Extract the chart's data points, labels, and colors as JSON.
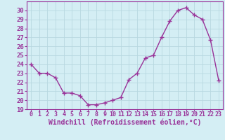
{
  "x": [
    0,
    1,
    2,
    3,
    4,
    5,
    6,
    7,
    8,
    9,
    10,
    11,
    12,
    13,
    14,
    15,
    16,
    17,
    18,
    19,
    20,
    21,
    22,
    23
  ],
  "y": [
    24,
    23,
    23,
    22.5,
    20.8,
    20.8,
    20.5,
    19.5,
    19.5,
    19.7,
    20,
    20.3,
    22.3,
    23,
    24.7,
    25,
    27,
    28.8,
    30,
    30.3,
    29.5,
    29,
    26.7,
    22.2
  ],
  "xlabel": "Windchill (Refroidissement éolien,°C)",
  "ylim": [
    19,
    31
  ],
  "xlim": [
    -0.5,
    23.5
  ],
  "yticks": [
    19,
    20,
    21,
    22,
    23,
    24,
    25,
    26,
    27,
    28,
    29,
    30
  ],
  "xticks": [
    0,
    1,
    2,
    3,
    4,
    5,
    6,
    7,
    8,
    9,
    10,
    11,
    12,
    13,
    14,
    15,
    16,
    17,
    18,
    19,
    20,
    21,
    22,
    23
  ],
  "line_color": "#993399",
  "marker": "D",
  "marker_size": 2.5,
  "bg_color": "#d4eef4",
  "grid_color": "#b8d8e0",
  "axis_label_color": "#993399",
  "tick_color": "#993399",
  "xlabel_fontsize": 7,
  "ytick_fontsize": 6.5,
  "xtick_fontsize": 6
}
